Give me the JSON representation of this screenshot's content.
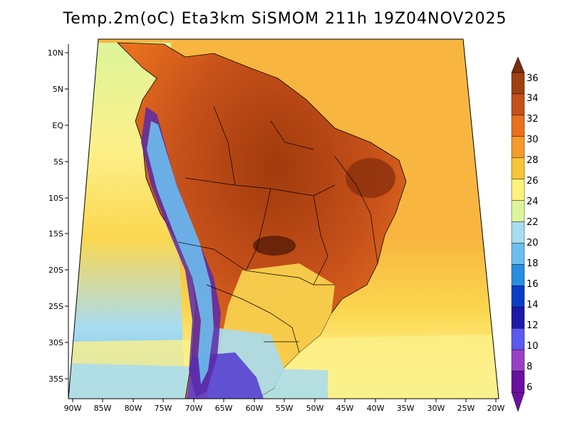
{
  "title": "Temp.2m(oC) Eta3km SiSMOM 211h 19Z04NOV2025",
  "lat_labels": [
    "10N",
    "5N",
    "EQ",
    "5S",
    "10S",
    "15S",
    "20S",
    "25S",
    "30S",
    "35S"
  ],
  "lon_labels": [
    "90W",
    "85W",
    "80W",
    "75W",
    "70W",
    "65W",
    "60W",
    "55W",
    "50W",
    "45W",
    "40W",
    "35W",
    "30W",
    "25W",
    "20W"
  ],
  "colorbar": {
    "labels": [
      "36",
      "34",
      "32",
      "30",
      "28",
      "26",
      "24",
      "22",
      "20",
      "18",
      "16",
      "14",
      "12",
      "10",
      "8",
      "6"
    ],
    "colors": [
      "#7a2f0f",
      "#a0400f",
      "#c5501a",
      "#e8701e",
      "#f39a2a",
      "#f8c438",
      "#fdf27a",
      "#ddf59a",
      "#a8dcf0",
      "#6cbdee",
      "#2a8ee0",
      "#0a3cc8",
      "#1b1ba8",
      "#5a5af0",
      "#9a40c8",
      "#6a10a0"
    ]
  },
  "colors": {
    "ocean_warm": "#f8b640",
    "ocean_mid": "#fbd750",
    "ocean_cool": "#fdf08a",
    "land_hot": "#a8400f",
    "land_warm": "#d96418",
    "andes_cold": "#5a2aa8",
    "border": "#000000"
  }
}
